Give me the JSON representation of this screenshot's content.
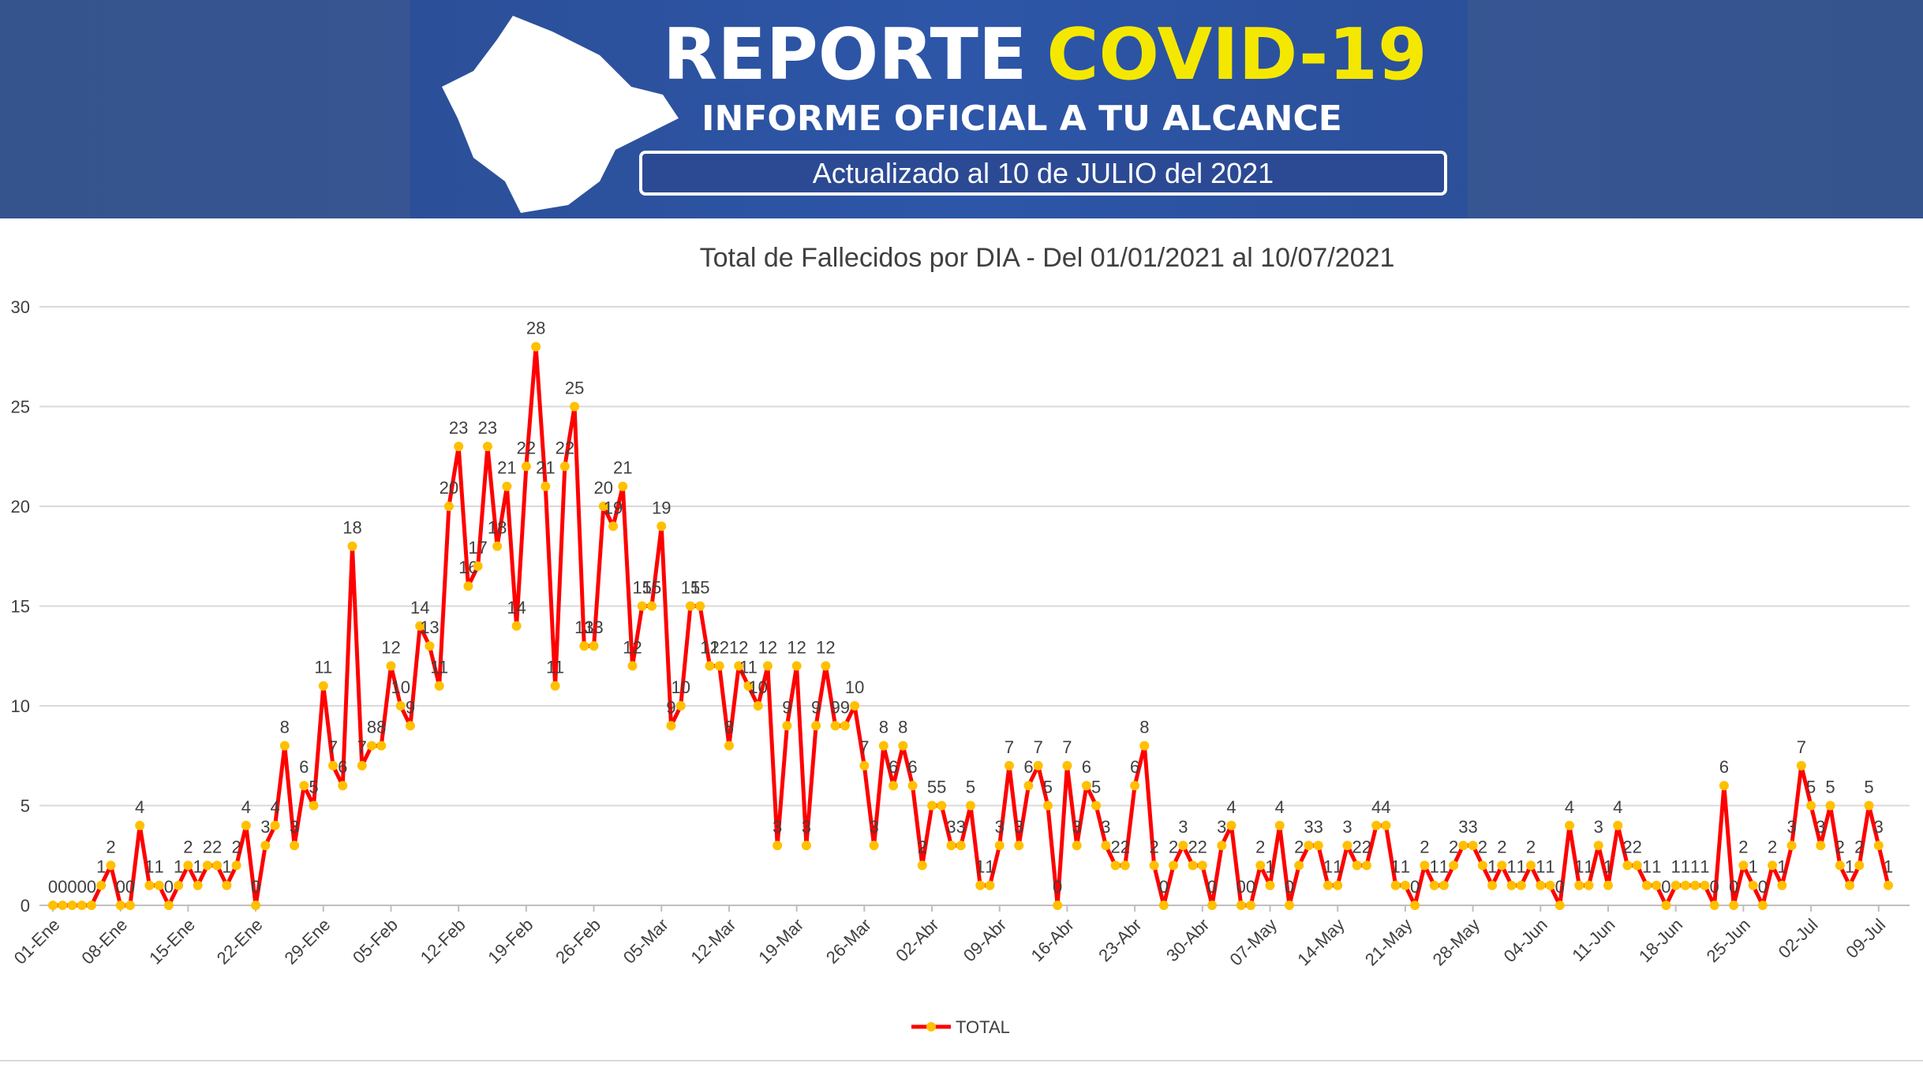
{
  "header": {
    "title_part1": "REPORTE",
    "title_part2": "COVID-19",
    "subtitle": "INFORME OFICIAL A TU ALCANCE",
    "updated": "Actualizado al 10 de JULIO del 2021"
  },
  "chart_data": {
    "type": "line",
    "title": "Total de Fallecidos por DIA - Del 01/01/2021 al 10/07/2021",
    "categories": [
      "01-Ene",
      null,
      null,
      null,
      null,
      null,
      null,
      "08-Ene",
      null,
      null,
      null,
      null,
      null,
      null,
      "15-Ene",
      null,
      null,
      null,
      null,
      null,
      null,
      "22-Ene",
      null,
      null,
      null,
      null,
      null,
      null,
      "29-Ene",
      null,
      null,
      null,
      null,
      null,
      null,
      "05-Feb",
      null,
      null,
      null,
      null,
      null,
      null,
      "12-Feb",
      null,
      null,
      null,
      null,
      null,
      null,
      "19-Feb",
      null,
      null,
      null,
      null,
      null,
      null,
      "26-Feb",
      null,
      null,
      null,
      null,
      null,
      null,
      "05-Mar",
      null,
      null,
      null,
      null,
      null,
      null,
      "12-Mar",
      null,
      null,
      null,
      null,
      null,
      null,
      "19-Mar",
      null,
      null,
      null,
      null,
      null,
      null,
      "26-Mar",
      null,
      null,
      null,
      null,
      null,
      null,
      "02-Abr",
      null,
      null,
      null,
      null,
      null,
      null,
      "09-Abr",
      null,
      null,
      null,
      null,
      null,
      null,
      "16-Abr",
      null,
      null,
      null,
      null,
      null,
      null,
      "23-Abr",
      null,
      null,
      null,
      null,
      null,
      null,
      "30-Abr",
      null,
      null,
      null,
      null,
      null,
      null,
      "07-May",
      null,
      null,
      null,
      null,
      null,
      null,
      "14-May",
      null,
      null,
      null,
      null,
      null,
      null,
      "21-May",
      null,
      null,
      null,
      null,
      null,
      null,
      "28-May",
      null,
      null,
      null,
      null,
      null,
      null,
      "04-Jun",
      null,
      null,
      null,
      null,
      null,
      null,
      "11-Jun",
      null,
      null,
      null,
      null,
      null,
      null,
      "18-Jun",
      null,
      null,
      null,
      null,
      null,
      null,
      "25-Jun",
      null,
      null,
      null,
      null,
      null,
      null,
      "02-Jul",
      null,
      null,
      null,
      null,
      null,
      null,
      "09-Jul",
      null
    ],
    "series": [
      {
        "name": "TOTAL",
        "color": "#ff0000",
        "marker_color": "#ffc000",
        "values": [
          0,
          0,
          0,
          0,
          0,
          1,
          2,
          0,
          0,
          4,
          1,
          1,
          0,
          1,
          2,
          1,
          2,
          2,
          1,
          2,
          4,
          0,
          3,
          4,
          8,
          3,
          6,
          5,
          11,
          7,
          6,
          18,
          7,
          8,
          8,
          12,
          10,
          9,
          14,
          13,
          11,
          20,
          23,
          16,
          17,
          23,
          18,
          21,
          14,
          22,
          28,
          21,
          11,
          22,
          25,
          13,
          13,
          20,
          19,
          21,
          12,
          15,
          15,
          19,
          9,
          10,
          15,
          15,
          12,
          12,
          8,
          12,
          11,
          10,
          12,
          3,
          9,
          12,
          3,
          9,
          12,
          9,
          9,
          10,
          7,
          3,
          8,
          6,
          8,
          6,
          2,
          5,
          5,
          3,
          3,
          5,
          1,
          1,
          3,
          7,
          3,
          6,
          7,
          5,
          0,
          7,
          3,
          6,
          5,
          3,
          2,
          2,
          6,
          8,
          2,
          0,
          2,
          3,
          2,
          2,
          0,
          3,
          4,
          0,
          0,
          2,
          1,
          4,
          0,
          2,
          3,
          3,
          1,
          1,
          3,
          2,
          2,
          4,
          4,
          1,
          1,
          0,
          2,
          1,
          1,
          2,
          3,
          3,
          2,
          1,
          2,
          1,
          1,
          2,
          1,
          1,
          0,
          4,
          1,
          1,
          3,
          1,
          4,
          2,
          2,
          1,
          1,
          0,
          1,
          1,
          1,
          1,
          0,
          6,
          0,
          2,
          1,
          0,
          2,
          1,
          3,
          7,
          5,
          3,
          5,
          2,
          1,
          2,
          5,
          3,
          1
        ]
      }
    ],
    "ylim": [
      0,
      30
    ],
    "yticks": [
      0,
      5,
      10,
      15,
      20,
      25,
      30
    ],
    "grid": true,
    "legend": "bottom"
  }
}
